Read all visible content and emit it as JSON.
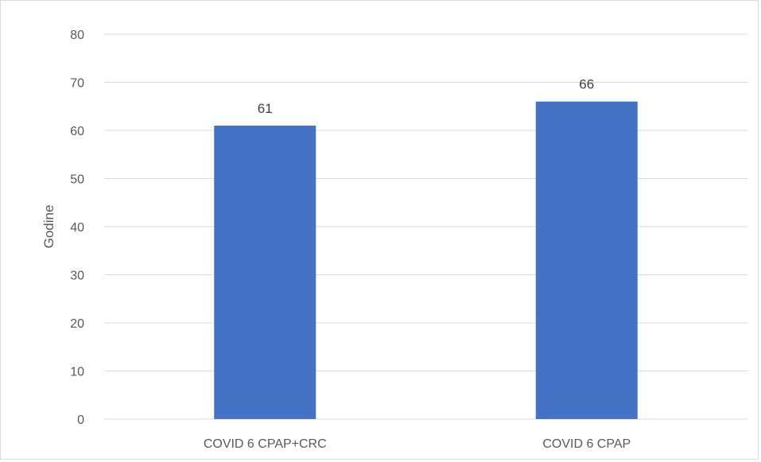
{
  "chart_data": {
    "type": "bar",
    "categories": [
      "COVID 6 CPAP+CRC",
      "COVID 6 CPAP"
    ],
    "values": [
      61,
      66
    ],
    "data_labels": [
      "61",
      "66"
    ],
    "title": "",
    "xlabel": "",
    "ylabel": "Godine",
    "ylim": [
      0,
      80
    ],
    "yticks": [
      0,
      10,
      20,
      30,
      40,
      50,
      60,
      70,
      80
    ],
    "grid": true,
    "legend": "none",
    "colors": {
      "bar": "#4472C4",
      "grid": "#d9d9d9",
      "text": "#595959"
    }
  }
}
